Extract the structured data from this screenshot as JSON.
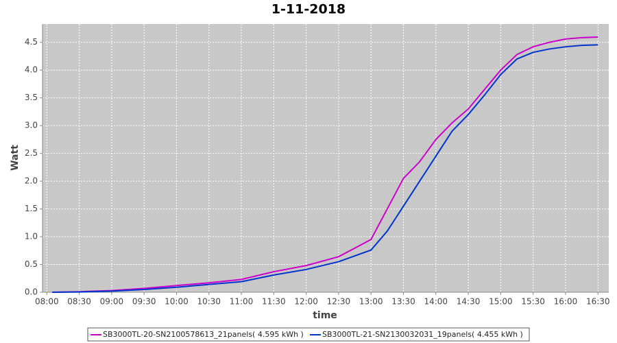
{
  "chart_data": {
    "type": "line",
    "title": "1-11-2018",
    "xlabel": "time",
    "ylabel": "Watt",
    "x": [
      "08:05",
      "08:30",
      "09:00",
      "09:30",
      "10:00",
      "10:30",
      "11:00",
      "11:30",
      "12:00",
      "12:30",
      "13:00",
      "13:15",
      "13:30",
      "13:45",
      "14:00",
      "14:15",
      "14:30",
      "14:45",
      "15:00",
      "15:15",
      "15:30",
      "15:45",
      "16:00",
      "16:15",
      "16:30"
    ],
    "series": [
      {
        "name": "SB3000TL-20-SN2100578613_21panels( 4.595 kWh )",
        "color": "#cc00cc",
        "values": [
          0,
          0.01,
          0.03,
          0.07,
          0.12,
          0.17,
          0.23,
          0.37,
          0.48,
          0.64,
          0.95,
          1.5,
          2.05,
          2.35,
          2.75,
          3.05,
          3.3,
          3.65,
          4.0,
          4.28,
          4.42,
          4.5,
          4.56,
          4.585,
          4.595
        ]
      },
      {
        "name": "SB3000TL-21-SN2130032031_19panels( 4.455 kWh )",
        "color": "#0033cc",
        "values": [
          0,
          0.005,
          0.02,
          0.05,
          0.09,
          0.14,
          0.19,
          0.31,
          0.41,
          0.55,
          0.76,
          1.1,
          1.55,
          2.0,
          2.45,
          2.9,
          3.2,
          3.55,
          3.92,
          4.2,
          4.32,
          4.38,
          4.42,
          4.445,
          4.455
        ]
      }
    ],
    "xlim": [
      "07:56",
      "16:40"
    ],
    "xticks": [
      "08:00",
      "08:30",
      "09:00",
      "09:30",
      "10:00",
      "10:30",
      "11:00",
      "11:30",
      "12:00",
      "12:30",
      "13:00",
      "13:30",
      "14:00",
      "14:30",
      "15:00",
      "15:30",
      "16:00",
      "16:30"
    ],
    "ylim": [
      0,
      4.83
    ],
    "yticks": [
      {
        "value": 0,
        "label": "0.0"
      },
      0.5,
      {
        "value": 1,
        "label": "1.0"
      },
      1.5,
      {
        "value": 2,
        "label": "2.0"
      },
      2.5,
      {
        "value": 3,
        "label": "3.0"
      },
      3.5,
      {
        "value": 4,
        "label": "4.0"
      },
      4.5
    ],
    "grid": true
  }
}
